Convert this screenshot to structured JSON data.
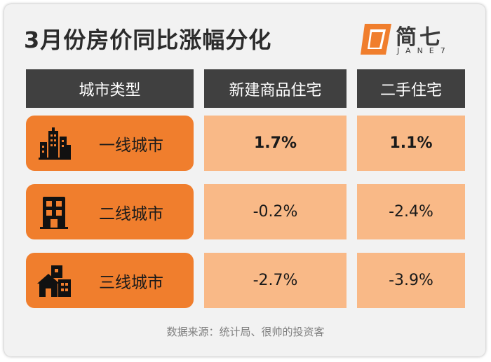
{
  "title": "3月份房价同比涨幅分化",
  "logo": {
    "name": "简七",
    "sub": "JANE7"
  },
  "headers": [
    "城市类型",
    "新建商品住宅",
    "二手住宅"
  ],
  "rows": [
    {
      "label": "一线城市",
      "icon": "city-skyscraper-icon",
      "new_home": "1.7%",
      "second_hand": "1.1%"
    },
    {
      "label": "二线城市",
      "icon": "office-building-icon",
      "new_home": "-0.2%",
      "second_hand": "-2.4%"
    },
    {
      "label": "三线城市",
      "icon": "houses-icon",
      "new_home": "-2.7%",
      "second_hand": "-3.9%"
    }
  ],
  "source": "数据来源：统计局、很帅的投资客",
  "colors": {
    "header_bg": "#404040",
    "label_bg": "#f07e2d",
    "cell_bg": "#f9b987",
    "logo_accent": "#f07e2d"
  }
}
